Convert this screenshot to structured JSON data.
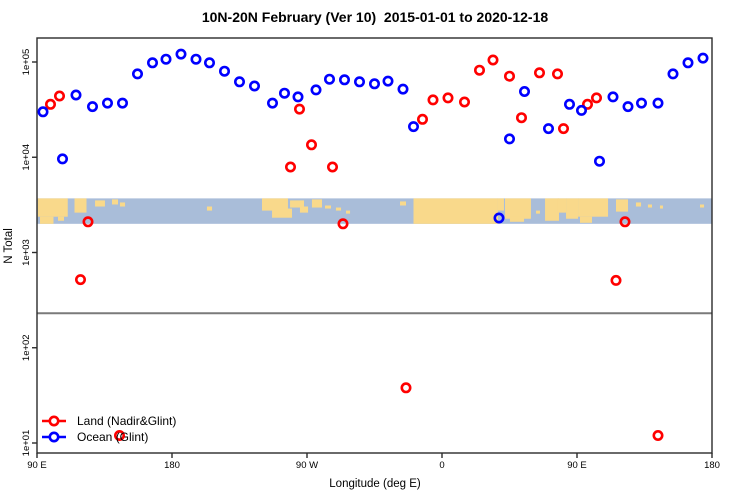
{
  "title": "10N-20N February (Ver 10)  2015-01-01 to 2020-12-18",
  "colors": {
    "land_series": "#ff0000",
    "ocean_series": "#0000ff",
    "map_ocean": "#a9bdd9",
    "map_land": "#f9d98b",
    "reference_line": "#7a7a7a",
    "axis": "#2b2b2b"
  },
  "legend": {
    "items": [
      {
        "label": "Land (Nadir&Glint)",
        "color": "#ff0000"
      },
      {
        "label": "Ocean (Glint)",
        "color": "#0000ff"
      }
    ]
  },
  "chart_data": {
    "type": "scatter",
    "title": "10N-20N February (Ver 10)  2015-01-01 to 2020-12-18",
    "xlabel": "Longitude (deg E)",
    "ylabel": "N Total",
    "x_axis": {
      "note": "longitude plotted continuously eastward from 90E, wrapping once (90E..180..90W..0..90E..180)",
      "lon_min": 90,
      "lon_max": 540,
      "ticks": [
        {
          "lon": 90,
          "label": "90 E"
        },
        {
          "lon": 180,
          "label": "180"
        },
        {
          "lon": 270,
          "label": "90 W"
        },
        {
          "lon": 360,
          "label": "0"
        },
        {
          "lon": 450,
          "label": "90 E"
        },
        {
          "lon": 540,
          "label": "180"
        }
      ]
    },
    "y_axis": {
      "scale": "log10",
      "ticks": [
        {
          "value": 10,
          "label": "1e+01"
        },
        {
          "value": 100,
          "label": "1e+02"
        },
        {
          "value": 1000,
          "label": "1e+03"
        },
        {
          "value": 10000,
          "label": "1e+04"
        },
        {
          "value": 100000,
          "label": "1e+05"
        }
      ],
      "ylim": [
        7,
        180000
      ]
    },
    "grid": false,
    "legend_position": "bottom-left-inside",
    "reference_line": {
      "value": 230
    },
    "map_strip": {
      "value_top": 3700,
      "value_bottom": 2000,
      "land_patches": [
        {
          "lon0": 90.5,
          "lon1": 110.5,
          "t": 0.0,
          "b": 0.72
        },
        {
          "lon0": 92,
          "lon1": 101,
          "t": 0.72,
          "b": 1.0
        },
        {
          "lon0": 104,
          "lon1": 108,
          "t": 0.72,
          "b": 0.88
        },
        {
          "lon0": 115,
          "lon1": 123,
          "t": 0.0,
          "b": 0.56
        },
        {
          "lon0": 128.7,
          "lon1": 135.3,
          "t": 0.08,
          "b": 0.32
        },
        {
          "lon0": 140,
          "lon1": 144,
          "t": 0.04,
          "b": 0.24
        },
        {
          "lon0": 145.3,
          "lon1": 148.7,
          "t": 0.16,
          "b": 0.32
        },
        {
          "lon0": 203.3,
          "lon1": 206.7,
          "t": 0.32,
          "b": 0.48
        },
        {
          "lon0": 240,
          "lon1": 257.3,
          "t": 0.0,
          "b": 0.48
        },
        {
          "lon0": 246.7,
          "lon1": 260,
          "t": 0.4,
          "b": 0.76
        },
        {
          "lon0": 258.7,
          "lon1": 268,
          "t": 0.08,
          "b": 0.36
        },
        {
          "lon0": 265.3,
          "lon1": 270.7,
          "t": 0.32,
          "b": 0.56
        },
        {
          "lon0": 273.3,
          "lon1": 280,
          "t": 0.04,
          "b": 0.36
        },
        {
          "lon0": 282,
          "lon1": 286,
          "t": 0.28,
          "b": 0.4
        },
        {
          "lon0": 289.3,
          "lon1": 292.7,
          "t": 0.36,
          "b": 0.48
        },
        {
          "lon0": 296,
          "lon1": 298.7,
          "t": 0.48,
          "b": 0.6
        },
        {
          "lon0": 332,
          "lon1": 336,
          "t": 0.12,
          "b": 0.28
        },
        {
          "lon0": 341,
          "lon1": 397.3,
          "t": 0.0,
          "b": 1.0
        },
        {
          "lon0": 397.3,
          "lon1": 401.3,
          "t": 0.0,
          "b": 0.48
        },
        {
          "lon0": 402,
          "lon1": 419.3,
          "t": 0.0,
          "b": 0.8
        },
        {
          "lon0": 405.3,
          "lon1": 414.7,
          "t": 0.72,
          "b": 0.92
        },
        {
          "lon0": 422.7,
          "lon1": 425.3,
          "t": 0.48,
          "b": 0.6
        },
        {
          "lon0": 428.7,
          "lon1": 438,
          "t": 0.0,
          "b": 0.88
        },
        {
          "lon0": 437.3,
          "lon1": 442.7,
          "t": 0.0,
          "b": 0.56
        },
        {
          "lon0": 442.7,
          "lon1": 450.7,
          "t": 0.0,
          "b": 0.8
        },
        {
          "lon0": 450.7,
          "lon1": 470.7,
          "t": 0.0,
          "b": 0.72
        },
        {
          "lon0": 452,
          "lon1": 460,
          "t": 0.72,
          "b": 0.96
        },
        {
          "lon0": 476,
          "lon1": 484,
          "t": 0.04,
          "b": 0.52
        },
        {
          "lon0": 489.3,
          "lon1": 492.7,
          "t": 0.16,
          "b": 0.32
        },
        {
          "lon0": 497.3,
          "lon1": 500,
          "t": 0.24,
          "b": 0.36
        },
        {
          "lon0": 505.3,
          "lon1": 507.3,
          "t": 0.28,
          "b": 0.4
        },
        {
          "lon0": 532,
          "lon1": 534.7,
          "t": 0.24,
          "b": 0.36
        }
      ]
    },
    "series": [
      {
        "name": "Land (Nadir&Glint)",
        "color": "#ff0000",
        "marker": "open-circle",
        "points": [
          {
            "lon": 99,
            "n": 36000
          },
          {
            "lon": 105,
            "n": 44000
          },
          {
            "lon": 265,
            "n": 32000
          },
          {
            "lon": 273,
            "n": 13500
          },
          {
            "lon": 259,
            "n": 7900
          },
          {
            "lon": 287,
            "n": 7900
          },
          {
            "lon": 347,
            "n": 25000
          },
          {
            "lon": 354,
            "n": 40000
          },
          {
            "lon": 364,
            "n": 42000
          },
          {
            "lon": 375,
            "n": 38000
          },
          {
            "lon": 385,
            "n": 82000
          },
          {
            "lon": 394,
            "n": 105000
          },
          {
            "lon": 405,
            "n": 71000
          },
          {
            "lon": 413,
            "n": 26000
          },
          {
            "lon": 425,
            "n": 77000
          },
          {
            "lon": 437,
            "n": 75000
          },
          {
            "lon": 441,
            "n": 20000
          },
          {
            "lon": 457,
            "n": 36000
          },
          {
            "lon": 463,
            "n": 42000
          },
          {
            "lon": 124,
            "n": 2100
          },
          {
            "lon": 294,
            "n": 2000
          },
          {
            "lon": 482,
            "n": 2100
          },
          {
            "lon": 119,
            "n": 520
          },
          {
            "lon": 476,
            "n": 510
          },
          {
            "lon": 336,
            "n": 38
          },
          {
            "lon": 145,
            "n": 12
          },
          {
            "lon": 504,
            "n": 12
          }
        ]
      },
      {
        "name": "Ocean (Glint)",
        "color": "#0000ff",
        "marker": "open-circle",
        "points": [
          {
            "lon": 94,
            "n": 30000
          },
          {
            "lon": 116,
            "n": 45000
          },
          {
            "lon": 127,
            "n": 34000
          },
          {
            "lon": 137,
            "n": 37000
          },
          {
            "lon": 147,
            "n": 37000
          },
          {
            "lon": 157,
            "n": 75000
          },
          {
            "lon": 167,
            "n": 98000
          },
          {
            "lon": 176,
            "n": 107000
          },
          {
            "lon": 186,
            "n": 121000
          },
          {
            "lon": 196,
            "n": 107000
          },
          {
            "lon": 205,
            "n": 98000
          },
          {
            "lon": 215,
            "n": 80000
          },
          {
            "lon": 225,
            "n": 62000
          },
          {
            "lon": 235,
            "n": 56000
          },
          {
            "lon": 107,
            "n": 9600
          },
          {
            "lon": 247,
            "n": 37000
          },
          {
            "lon": 255,
            "n": 47000
          },
          {
            "lon": 264,
            "n": 43000
          },
          {
            "lon": 276,
            "n": 51000
          },
          {
            "lon": 285,
            "n": 66000
          },
          {
            "lon": 295,
            "n": 65000
          },
          {
            "lon": 305,
            "n": 62000
          },
          {
            "lon": 315,
            "n": 59000
          },
          {
            "lon": 324,
            "n": 63000
          },
          {
            "lon": 334,
            "n": 52000
          },
          {
            "lon": 341,
            "n": 21000
          },
          {
            "lon": 405,
            "n": 15600
          },
          {
            "lon": 415,
            "n": 49000
          },
          {
            "lon": 431,
            "n": 20000
          },
          {
            "lon": 445,
            "n": 36000
          },
          {
            "lon": 453,
            "n": 31000
          },
          {
            "lon": 465,
            "n": 9100
          },
          {
            "lon": 474,
            "n": 43000
          },
          {
            "lon": 484,
            "n": 34000
          },
          {
            "lon": 493,
            "n": 37000
          },
          {
            "lon": 504,
            "n": 37000
          },
          {
            "lon": 514,
            "n": 75000
          },
          {
            "lon": 524,
            "n": 98000
          },
          {
            "lon": 534,
            "n": 110000
          },
          {
            "lon": 398,
            "n": 2300
          }
        ]
      }
    ]
  }
}
